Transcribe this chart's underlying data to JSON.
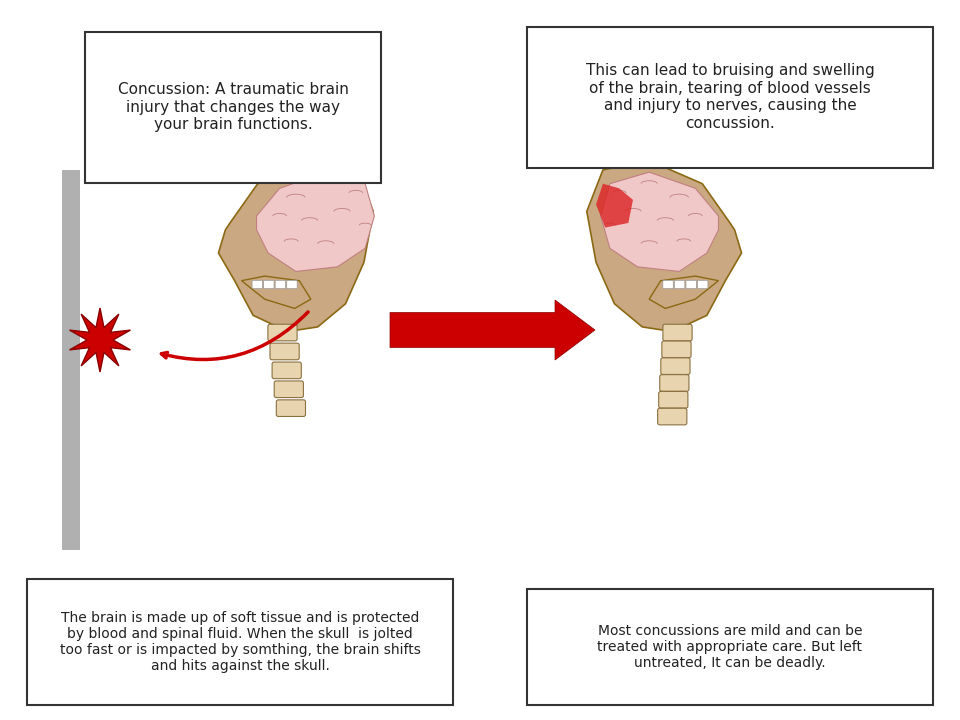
{
  "bg_color": "#ffffff",
  "text_box1_title": "Concussion: A traumatic brain\ninjury that changes the way\nyour brain functions.",
  "text_box2_title": "This can lead to bruising and swelling\nof the brain, tearing of blood vessels\nand injury to nerves, causing the\nconcussion.",
  "text_box3": "The brain is made up of soft tissue and is protected\nby blood and spinal fluid. When the skull  is jolted\ntoo fast or is impacted by somthing, the brain shifts\nand hits against the skull.",
  "text_box4": "Most concussions are mild and can be\ntreated with appropriate care. But left\nuntreated, It can be deadly.",
  "skull_color": "#c9a882",
  "brain_color": "#f0c8c8",
  "brain_highlight": "#e05050",
  "spine_color": "#e8d5b0",
  "gray_bar_color": "#b0b0b0",
  "arrow_color": "#cc0000",
  "star_color": "#cc0000",
  "box_edge_color": "#333333",
  "box_bg_color": "#ffffff",
  "title_fontsize": 11,
  "body_fontsize": 10
}
